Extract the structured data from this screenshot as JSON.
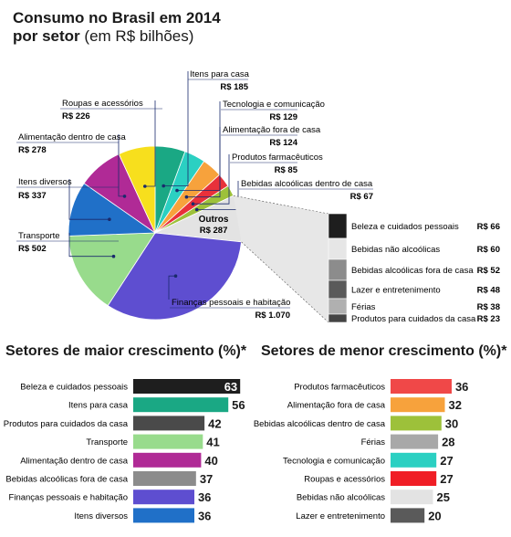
{
  "title": "Consumo no Brasil em 2014",
  "subtitle_bold": "por setor",
  "subtitle_rest": "(em R$ bilhões)",
  "chart_data": [
    {
      "type": "pie",
      "title": "Consumo no Brasil em 2014 por setor (em R$ bilhões)",
      "slices": [
        {
          "name": "Itens para casa",
          "label": "R$ 185",
          "value": 185,
          "color": "#1aa884"
        },
        {
          "name": "Tecnologia e comunicação",
          "label": "R$ 129",
          "value": 129,
          "color": "#2bd0c2"
        },
        {
          "name": "Alimentação fora de casa",
          "label": "R$ 124",
          "value": 124,
          "color": "#f7a23c"
        },
        {
          "name": "Produtos farmacêuticos",
          "label": "R$ 85",
          "value": 85,
          "color": "#e8313a"
        },
        {
          "name": "Bebidas alcoólicas dentro de casa",
          "label": "R$ 67",
          "value": 67,
          "color": "#9dc13a"
        },
        {
          "name": "Outros",
          "label": "R$ 287",
          "value": 287,
          "color": "#e3e3e3"
        },
        {
          "name": "Finanças pessoais e habitação",
          "label": "R$ 1.070",
          "value": 1070,
          "color": "#5e4ed0"
        },
        {
          "name": "Transporte",
          "label": "R$ 502",
          "value": 502,
          "color": "#98db8c"
        },
        {
          "name": "Itens diversos",
          "label": "R$ 337",
          "value": 337,
          "color": "#2070c8"
        },
        {
          "name": "Alimentação dentro de casa",
          "label": "R$ 278",
          "value": 278,
          "color": "#b02a96"
        },
        {
          "name": "Roupas e acessórios",
          "label": "R$ 226",
          "value": 226,
          "color": "#f7df1d"
        }
      ],
      "outros_breakdown": [
        {
          "name": "Beleza e cuidados pessoais",
          "label": "R$ 66",
          "value": 66,
          "color": "#1e1e1e"
        },
        {
          "name": "Bebidas não alcoólicas",
          "label": "R$ 60",
          "value": 60,
          "color": "#e6e6e6"
        },
        {
          "name": "Bebidas alcoólicas fora de casa",
          "label": "R$ 52",
          "value": 52,
          "color": "#8c8c8c"
        },
        {
          "name": "Lazer e entretenimento",
          "label": "R$ 48",
          "value": 48,
          "color": "#5a5a5a"
        },
        {
          "name": "Férias",
          "label": "R$ 38",
          "value": 38,
          "color": "#b0b0b0"
        },
        {
          "name": "Produtos para cuidados da casa",
          "label": "R$ 23",
          "value": 23,
          "color": "#444444"
        }
      ]
    },
    {
      "type": "bar",
      "title": "Setores de maior crescimento (%)*",
      "categories": [
        "Beleza e cuidados pessoais",
        "Itens para casa",
        "Produtos para cuidados da casa",
        "Transporte",
        "Alimentação dentro de casa",
        "Bebidas alcoólicas fora de casa",
        "Finanças pessoais e habitação",
        "Itens diversos"
      ],
      "values": [
        63,
        56,
        42,
        41,
        40,
        37,
        36,
        36
      ],
      "colors": [
        "#1e1e1e",
        "#1aa884",
        "#4a4a4a",
        "#98db8c",
        "#b02a96",
        "#8c8c8c",
        "#5e4ed0",
        "#2070c8"
      ]
    },
    {
      "type": "bar",
      "title": "Setores de menor crescimento (%)*",
      "categories": [
        "Produtos farmacêuticos",
        "Alimentação fora de casa",
        "Bebidas alcoólicas dentro de casa",
        "Férias",
        "Tecnologia e comunicação",
        "Roupas e acessórios",
        "Bebidas não alcoólicas",
        "Lazer e entretenimento"
      ],
      "values": [
        36,
        32,
        30,
        28,
        27,
        27,
        25,
        20
      ],
      "colors": [
        "#f04848",
        "#f7a23c",
        "#9dc13a",
        "#a8a8a8",
        "#2bd0c2",
        "#f01e26",
        "#e3e3e3",
        "#5a5a5a"
      ]
    }
  ]
}
